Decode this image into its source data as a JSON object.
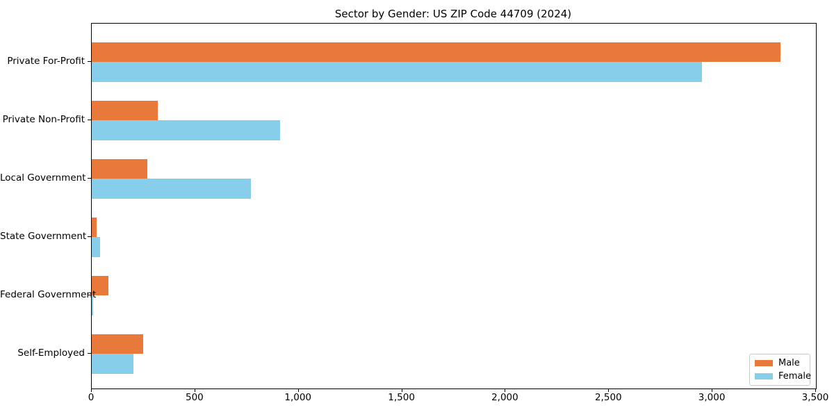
{
  "chart_data": {
    "type": "bar",
    "orientation": "horizontal",
    "title": "Sector by Gender: US ZIP Code 44709 (2024)",
    "categories": [
      "Private For-Profit",
      "Private Non-Profit",
      "Local Government",
      "State Government",
      "Federal Government",
      "Self-Employed"
    ],
    "series": [
      {
        "name": "Male",
        "color": "#E8793B",
        "values": [
          3330,
          320,
          270,
          25,
          80,
          250
        ]
      },
      {
        "name": "Female",
        "color": "#87CEEB",
        "values": [
          2950,
          910,
          770,
          40,
          5,
          200
        ]
      }
    ],
    "xlim": [
      0,
      3500
    ],
    "x_ticks": [
      0,
      500,
      1000,
      1500,
      2000,
      2500,
      3000,
      3500
    ],
    "x_tick_labels": [
      "0",
      "500",
      "1,000",
      "1,500",
      "2,000",
      "2,500",
      "3,000",
      "3,500"
    ],
    "xlabel": "",
    "ylabel": "",
    "grid": false,
    "legend": {
      "position": "lower right",
      "entries": [
        "Male",
        "Female"
      ]
    }
  }
}
